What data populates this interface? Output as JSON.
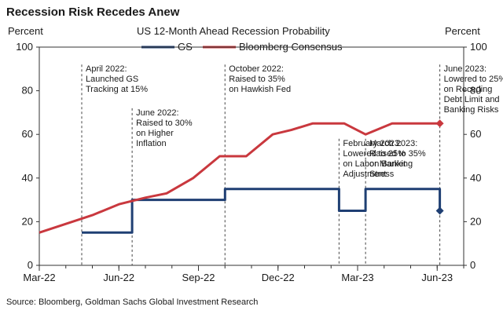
{
  "chart_data": {
    "type": "line",
    "title": "Recession Risk Recedes Anew",
    "subtitle": "US 12-Month Ahead Recession Probability",
    "ylabel_left": "Percent",
    "ylabel_right": "Percent",
    "ylim": [
      0,
      100
    ],
    "yticks": [
      0,
      20,
      40,
      60,
      80,
      100
    ],
    "xlim": [
      0,
      16
    ],
    "xticks": [
      {
        "x": 0,
        "label": "Mar-22"
      },
      {
        "x": 3,
        "label": "Jun-22"
      },
      {
        "x": 6,
        "label": "Sep-22"
      },
      {
        "x": 9,
        "label": "Dec-22"
      },
      {
        "x": 12,
        "label": "Mar-23"
      },
      {
        "x": 15,
        "label": "Jun-23"
      }
    ],
    "series": [
      {
        "name": "GS",
        "color": "#1f3f73",
        "step": true,
        "points": [
          [
            1.6,
            15
          ],
          [
            3.5,
            15
          ],
          [
            3.5,
            30
          ],
          [
            7.0,
            30
          ],
          [
            7.0,
            35
          ],
          [
            11.3,
            35
          ],
          [
            11.3,
            25
          ],
          [
            12.3,
            25
          ],
          [
            12.3,
            35
          ],
          [
            15.1,
            35
          ],
          [
            15.1,
            25
          ]
        ],
        "end_marker": [
          15.1,
          25
        ]
      },
      {
        "name": "Bloomberg Consensus",
        "color": "#c9383e",
        "step": false,
        "points": [
          [
            0,
            15
          ],
          [
            1,
            19
          ],
          [
            2,
            23
          ],
          [
            3,
            28
          ],
          [
            4,
            31
          ],
          [
            4.8,
            33
          ],
          [
            5.8,
            40
          ],
          [
            6.8,
            50
          ],
          [
            7.8,
            50
          ],
          [
            8.8,
            60
          ],
          [
            9.5,
            62
          ],
          [
            10.3,
            65
          ],
          [
            11.5,
            65
          ],
          [
            12.3,
            60
          ],
          [
            13.3,
            65
          ],
          [
            14.3,
            65
          ],
          [
            15.1,
            65
          ]
        ],
        "end_marker": [
          15.1,
          65
        ]
      }
    ],
    "events": [
      {
        "x": 1.6,
        "lines": [
          "April 2022:",
          "Launched GS",
          "Tracking at 15%"
        ],
        "y_top": 92
      },
      {
        "x": 3.5,
        "lines": [
          "June 2022:",
          "Raised to 30%",
          "on Higher",
          "Inflation"
        ],
        "y_top": 72
      },
      {
        "x": 7.0,
        "lines": [
          "October 2022:",
          "Raised to 35%",
          "on Hawkish Fed"
        ],
        "y_top": 92
      },
      {
        "x": 11.3,
        "lines": [
          "February 2023:",
          "Lowered to 25%",
          "on Labor Market",
          "Adjustment"
        ],
        "y_top": 58
      },
      {
        "x": 12.3,
        "lines": [
          "March 2023:",
          "Raised to 35%",
          "on Banking",
          "Stress"
        ],
        "y_top": 58
      },
      {
        "x": 15.1,
        "lines": [
          "June 2023:",
          "Lowered to 25%",
          "on Receding",
          "Debt Limit  and",
          "Banking Risks"
        ],
        "y_top": 92
      }
    ],
    "source": "Source: Bloomberg, Goldman Sachs Global Investment Research"
  }
}
